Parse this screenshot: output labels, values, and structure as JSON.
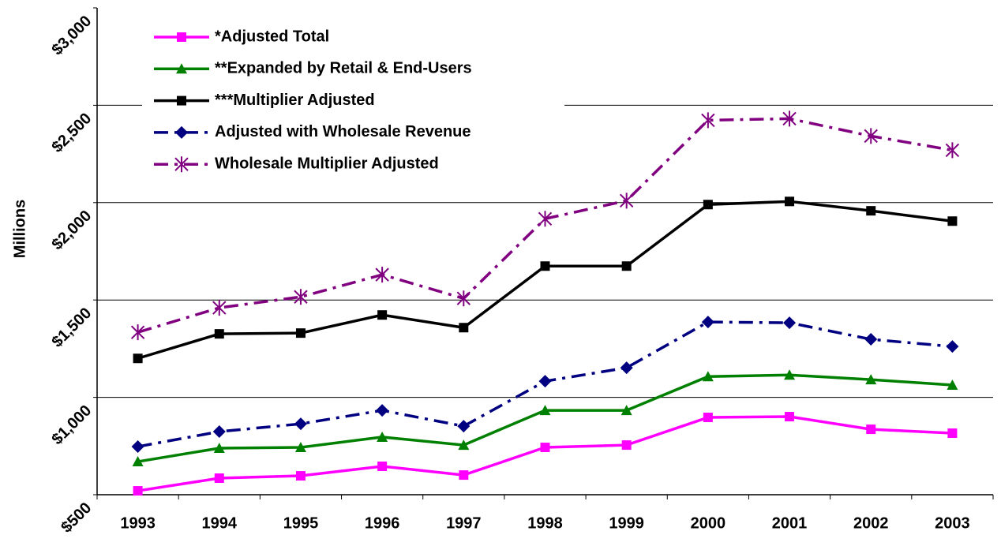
{
  "chart_data": {
    "type": "line",
    "y_axis_label": "Millions",
    "categories": [
      "1993",
      "1994",
      "1995",
      "1996",
      "1997",
      "1998",
      "1999",
      "2000",
      "2001",
      "2002",
      "2003"
    ],
    "ylim": [
      500,
      3000
    ],
    "yticks": [
      {
        "value": 500,
        "label": "$500"
      },
      {
        "value": 1000,
        "label": "$1,000"
      },
      {
        "value": 1500,
        "label": "$1,500"
      },
      {
        "value": 2000,
        "label": "$2,000"
      },
      {
        "value": 2500,
        "label": "$2,500"
      },
      {
        "value": 3000,
        "label": "$3,000"
      }
    ],
    "grid": true,
    "legend": "upper left",
    "series": [
      {
        "name": "*Adjusted Total",
        "color": "#ff00ff",
        "marker": "square",
        "dash": "solid",
        "values": [
          520,
          585,
          597,
          646,
          601,
          743,
          755,
          897,
          901,
          836,
          816
        ]
      },
      {
        "name": "**Expanded by Retail & End-Users",
        "color": "#008000",
        "marker": "triangle",
        "dash": "solid",
        "values": [
          670,
          739,
          743,
          796,
          755,
          933,
          933,
          1107,
          1115,
          1091,
          1063
        ]
      },
      {
        "name": "***Multiplier Adjusted",
        "color": "#000000",
        "marker": "square",
        "dash": "solid",
        "values": [
          1200,
          1326,
          1330,
          1423,
          1358,
          1674,
          1674,
          1990,
          2006,
          1958,
          1905
        ]
      },
      {
        "name": "Adjusted with Wholesale Revenue",
        "color": "#000080",
        "marker": "diamond",
        "dash": "dashdot",
        "values": [
          747,
          824,
          864,
          933,
          852,
          1083,
          1152,
          1387,
          1383,
          1298,
          1261
        ]
      },
      {
        "name": "Wholesale Multiplier Adjusted",
        "color": "#800080",
        "marker": "asterisk",
        "dash": "dashdot",
        "values": [
          1334,
          1460,
          1516,
          1630,
          1508,
          1917,
          2010,
          2423,
          2431,
          2342,
          2269
        ]
      }
    ]
  }
}
